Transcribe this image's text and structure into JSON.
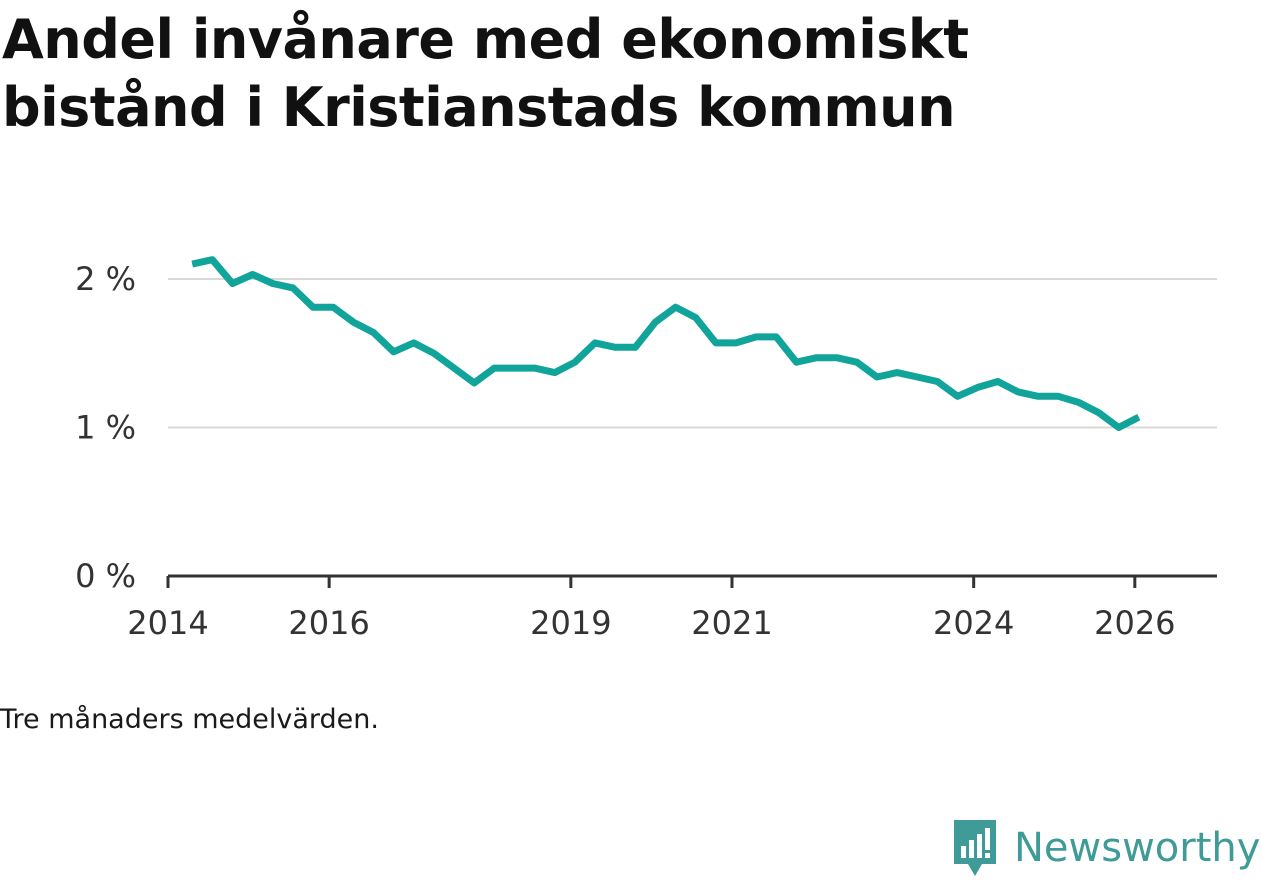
{
  "title": "Andel invånare med ekonomiskt bistånd i Kristianstads kommun",
  "note": "Tre månaders medelvärden.",
  "brand": {
    "name": "Newsworthy",
    "color": "#3f9b97"
  },
  "colors": {
    "line": "#10a49a",
    "grid": "#d9d9d9",
    "axis": "#333333"
  },
  "chart_data": {
    "type": "line",
    "title": "Andel invånare med ekonomiskt bistånd i Kristianstads kommun",
    "xlabel": "",
    "ylabel": "",
    "ylim": [
      0,
      2
    ],
    "xlim": [
      2014,
      2027.02
    ],
    "yticks": [
      {
        "value": 0,
        "label": "0 %"
      },
      {
        "value": 1,
        "label": "1 %"
      },
      {
        "value": 2,
        "label": "2 %"
      }
    ],
    "xticks": [
      {
        "value": 2014,
        "label": "2014"
      },
      {
        "value": 2016,
        "label": "2016"
      },
      {
        "value": 2019,
        "label": "2019"
      },
      {
        "value": 2021,
        "label": "2021"
      },
      {
        "value": 2024,
        "label": "2024"
      },
      {
        "value": 2026,
        "label": "2026"
      }
    ],
    "grid": true,
    "series": [
      {
        "name": "Andel invånare med ekonomiskt bistånd",
        "x": [
          2014.3,
          2014.55,
          2014.8,
          2015.05,
          2015.3,
          2015.55,
          2015.8,
          2016.05,
          2016.3,
          2016.55,
          2016.8,
          2017.05,
          2017.3,
          2017.55,
          2017.8,
          2018.05,
          2018.3,
          2018.55,
          2018.8,
          2019.05,
          2019.3,
          2019.55,
          2019.8,
          2020.05,
          2020.3,
          2020.55,
          2020.8,
          2021.05,
          2021.3,
          2021.55,
          2021.8,
          2022.05,
          2022.3,
          2022.55,
          2022.8,
          2023.05,
          2023.3,
          2023.55,
          2023.8,
          2024.05,
          2024.3,
          2024.55,
          2024.8,
          2025.05,
          2025.3,
          2025.55,
          2025.8,
          2026.05
        ],
        "values": [
          2.1,
          2.13,
          1.97,
          2.03,
          1.97,
          1.94,
          1.81,
          1.81,
          1.71,
          1.64,
          1.51,
          1.57,
          1.5,
          1.4,
          1.3,
          1.4,
          1.4,
          1.4,
          1.37,
          1.44,
          1.57,
          1.54,
          1.54,
          1.71,
          1.81,
          1.74,
          1.57,
          1.57,
          1.61,
          1.61,
          1.44,
          1.47,
          1.47,
          1.44,
          1.34,
          1.37,
          1.34,
          1.31,
          1.21,
          1.27,
          1.31,
          1.24,
          1.21,
          1.21,
          1.17,
          1.1,
          1.0,
          1.07
        ]
      }
    ]
  }
}
